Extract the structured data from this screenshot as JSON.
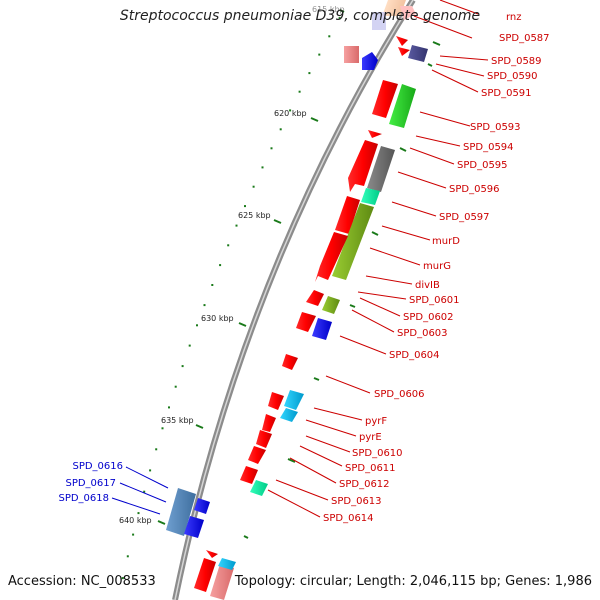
{
  "header": {
    "title": "Streptococcus pneumoniae D39, complete genome"
  },
  "footer": {
    "accession": "Accession: NC_008533",
    "summary": "Topology: circular; Length: 2,046,115 bp; Genes: 1,986"
  },
  "scale": {
    "ticks": [
      "615 kbp",
      "620 kbp",
      "625 kbp",
      "630 kbp",
      "635 kbp",
      "640 kbp"
    ]
  },
  "genes_right": [
    "rnz",
    "SPD_0587",
    "SPD_0589",
    "SPD_0590",
    "SPD_0591",
    "SPD_0593",
    "SPD_0594",
    "SPD_0595",
    "SPD_0596",
    "SPD_0597",
    "murD",
    "murG",
    "divIB",
    "SPD_0601",
    "SPD_0602",
    "SPD_0603",
    "SPD_0604",
    "SPD_0606",
    "pyrF",
    "pyrE",
    "SPD_0610",
    "SPD_0611",
    "SPD_0612",
    "SPD_0613",
    "SPD_0614"
  ],
  "genes_left": [
    "SPD_0616",
    "SPD_0617",
    "SPD_0618"
  ],
  "colors": {
    "forward_label": "#cc0000",
    "reverse_label": "#0000cc",
    "backbone": "#888888"
  }
}
